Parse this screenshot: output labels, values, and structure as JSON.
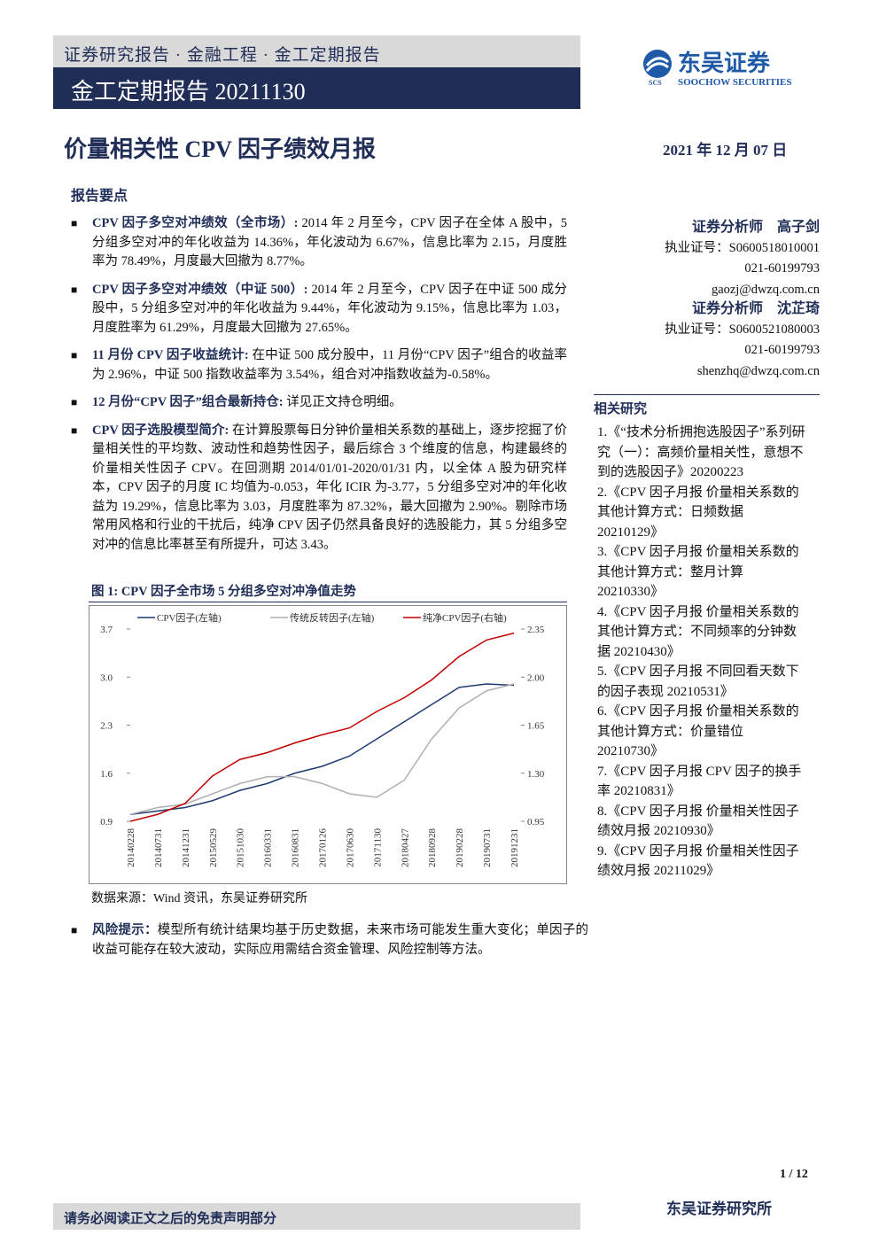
{
  "header": {
    "category": "证券研究报告 · 金融工程 · 金工定期报告",
    "report_type": "金工定期报告 20211130",
    "logo_cn": "东吴证券",
    "logo_en": "SOOCHOW SECURITIES",
    "logo_abbr": "SCS"
  },
  "title": "价量相关性 CPV 因子绩效月报",
  "date": "2021 年 12 月 07 日",
  "summary": {
    "title": "报告要点",
    "points": [
      {
        "label": "CPV 因子多空对冲绩效（全市场）:",
        "text": " 2014 年 2 月至今，CPV 因子在全体 A 股中，5 分组多空对冲的年化收益为 14.36%，年化波动为 6.67%，信息比率为 2.15，月度胜率为 78.49%，月度最大回撤为 8.77%。"
      },
      {
        "label": "CPV 因子多空对冲绩效（中证 500）:",
        "text": " 2014 年 2 月至今，CPV 因子在中证 500 成分股中，5 分组多空对冲的年化收益为 9.44%，年化波动为 9.15%，信息比率为 1.03，月度胜率为 61.29%，月度最大回撤为 27.65%。"
      },
      {
        "label": "11 月份 CPV 因子收益统计:",
        "text": " 在中证 500 成分股中，11 月份“CPV 因子”组合的收益率为 2.96%，中证 500 指数收益率为 3.54%，组合对冲指数收益为-0.58%。"
      },
      {
        "label": "12 月份“CPV 因子”组合最新持仓:",
        "text": " 详见正文持仓明细。"
      },
      {
        "label": "CPV 因子选股模型简介:",
        "text": " 在计算股票每日分钟价量相关系数的基础上，逐步挖掘了价量相关性的平均数、波动性和趋势性因子，最后综合 3 个维度的信息，构建最终的价量相关性因子 CPV。在回测期 2014/01/01-2020/01/31 内，以全体 A 股为研究样本，CPV 因子的月度 IC 均值为-0.053，年化 ICIR 为-3.77，5 分组多空对冲的年化收益为 19.29%，信息比率为 3.03，月度胜率为 87.32%，最大回撤为 2.90%。剔除市场常用风格和行业的干扰后，纯净 CPV 因子仍然具备良好的选股能力，其 5 分组多空对冲的信息比率甚至有所提升，可达 3.43。"
      }
    ]
  },
  "figure": {
    "caption": "图 1:  CPV 因子全市场 5 分组多空对冲净值走势",
    "source": "数据来源：Wind 资讯，东吴证券研究所",
    "chart_data": {
      "type": "line",
      "categories": [
        "20140228",
        "20140731",
        "20141231",
        "20150529",
        "20151030",
        "20160331",
        "20160831",
        "20170126",
        "20170630",
        "20171130",
        "20180427",
        "20180928",
        "20190228",
        "20190731",
        "20191231"
      ],
      "series": [
        {
          "name": "CPV因子(左轴)",
          "color": "#1f3a6e",
          "values": [
            1.0,
            1.05,
            1.1,
            1.2,
            1.35,
            1.45,
            1.6,
            1.7,
            1.85,
            2.1,
            2.35,
            2.6,
            2.85,
            2.9,
            2.88
          ]
        },
        {
          "name": "传统反转因子(左轴)",
          "color": "#b0b0b0",
          "values": [
            1.0,
            1.1,
            1.15,
            1.3,
            1.45,
            1.55,
            1.55,
            1.45,
            1.3,
            1.25,
            1.5,
            2.1,
            2.55,
            2.8,
            2.9
          ]
        },
        {
          "name": "纯净CPV因子(右轴)",
          "color": "#c00000",
          "axis": "y2",
          "values": [
            0.95,
            1.0,
            1.08,
            1.28,
            1.4,
            1.45,
            1.52,
            1.58,
            1.63,
            1.75,
            1.85,
            1.98,
            2.15,
            2.27,
            2.32
          ]
        }
      ],
      "ylim": [
        0.9,
        3.7
      ],
      "yticks": [
        0.9,
        1.6,
        2.3,
        {
          "value": 3,
          "label": "3.0"
        },
        3.7
      ],
      "y2lim": [
        0.95,
        2.35
      ],
      "y2ticks": [
        0.95,
        {
          "value": 1.3,
          "label": "1.30"
        },
        1.65,
        {
          "value": 2,
          "label": "2.00"
        },
        2.35
      ]
    }
  },
  "risk": {
    "label": "风险提示：",
    "text": "模型所有统计结果均基于历史数据，未来市场可能发生重大变化；单因子的收益可能存在较大波动，实际应用需结合资金管理、风险控制等方法。"
  },
  "analysts": [
    {
      "role": "证券分析师",
      "name": "高子剑",
      "license": "执业证号：S0600518010001",
      "phone": "021-60199793",
      "email": "gaozj@dwzq.com.cn"
    },
    {
      "role": "证券分析师",
      "name": "沈芷琦",
      "license": "执业证号：S0600521080003",
      "phone": "021-60199793",
      "email": "shenzhq@dwzq.com.cn"
    }
  ],
  "related": {
    "title": "相关研究",
    "items": [
      "1.《“技术分析拥抱选股因子”系列研究（一）：高频价量相关性，意想不到的选股因子》20200223",
      "2.《CPV 因子月报 价量相关系数的其他计算方式：日频数据 20210129》",
      "3.《CPV 因子月报 价量相关系数的其他计算方式：整月计算 20210330》",
      "4.《CPV 因子月报 价量相关系数的其他计算方式：不同频率的分钟数据 20210430》",
      "5.《CPV 因子月报 不同回看天数下的因子表现 20210531》",
      "6.《CPV 因子月报 价量相关系数的其他计算方式：价量错位 20210730》",
      "7.《CPV 因子月报 CPV 因子的换手率 20210831》",
      "8.《CPV 因子月报 价量相关性因子绩效月报 20210930》",
      "9.《CPV 因子月报 价量相关性因子绩效月报 20211029》"
    ]
  },
  "footer": {
    "page": "1 / 12",
    "disclaimer": "请务必阅读正文之后的免责声明部分",
    "firm": "东吴证券研究所"
  }
}
